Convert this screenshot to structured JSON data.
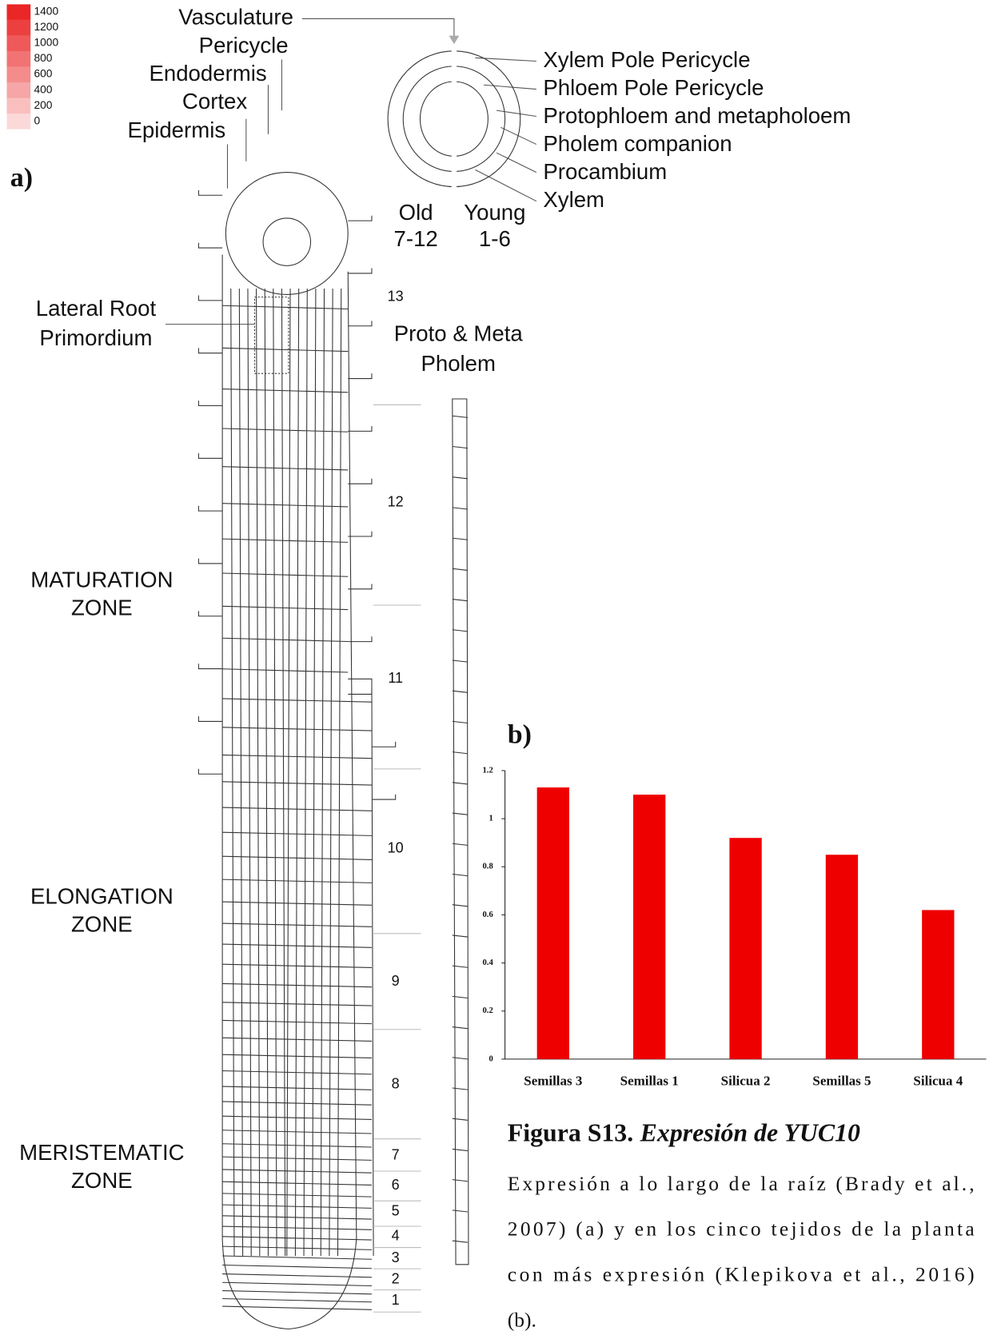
{
  "diagram": {
    "panel_label": "a)",
    "color_scale": {
      "ticks": [
        1400,
        1200,
        1000,
        800,
        600,
        400,
        200,
        0
      ]
    },
    "tissues": [
      "Vasculature",
      "Pericycle",
      "Endodermis",
      "Cortex",
      "Epidermis"
    ],
    "cross_section_labels": [
      "Xylem Pole Pericycle",
      "Phloem Pole Pericycle",
      "Protophloem and metapholoem",
      "Pholem companion",
      "Procambium",
      "Xylem"
    ],
    "old": "Old",
    "old_range": "7-12",
    "young": "Young",
    "young_range": "1-6",
    "lateral_root": [
      "Lateral Root",
      "Primordium"
    ],
    "proto_meta": [
      "Proto & Meta",
      "Pholem"
    ],
    "zones": [
      [
        "MATURATION",
        "ZONE"
      ],
      [
        "ELONGATION",
        "ZONE"
      ],
      [
        "MERISTEMATIC",
        "ZONE"
      ]
    ],
    "sections": [
      13,
      12,
      11,
      10,
      9,
      8,
      7,
      6,
      5,
      4,
      3,
      2,
      1
    ]
  },
  "chart_data": {
    "type": "bar",
    "title": "b)",
    "categories": [
      "Semillas 3",
      "Semillas 1",
      "Silicua 2",
      "Semillas 5",
      "Silicua 4"
    ],
    "values": [
      1.13,
      1.1,
      0.92,
      0.85,
      0.62
    ],
    "color": "#ee0000",
    "ylim": [
      0,
      1.2
    ],
    "yticks": [
      0,
      0.2,
      0.4,
      0.6,
      0.8,
      1,
      1.2
    ]
  },
  "caption": {
    "title": "Figura S13.",
    "subtitle": "Expresión de YUC10",
    "lines": [
      "Expresión a lo largo de la raíz (Brady et al.,",
      "2007) (a) y en los cinco tejidos de la planta",
      "con más expresión (Klepikova et al., 2016)",
      "(b)."
    ]
  }
}
